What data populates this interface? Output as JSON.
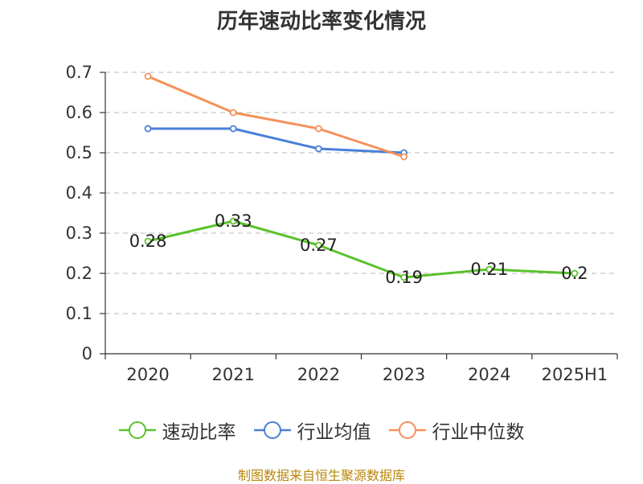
{
  "title": "历年速动比率变化情况",
  "source_text": "制图数据来自恒生聚源数据库",
  "chart_data": {
    "type": "line",
    "title": "历年速动比率变化情况",
    "categories": [
      "2020",
      "2021",
      "2022",
      "2023",
      "2024",
      "2025H1"
    ],
    "ylim": [
      0,
      0.7
    ],
    "yticks": [
      "0",
      "0.1",
      "0.2",
      "0.3",
      "0.4",
      "0.5",
      "0.6",
      "0.7"
    ],
    "grid": true,
    "legend_position": "bottom",
    "series": [
      {
        "name": "速动比率",
        "color": "#5ac12c",
        "values": [
          0.28,
          0.33,
          0.27,
          0.19,
          0.21,
          0.2
        ],
        "labels": [
          "0.28",
          "0.33",
          "0.27",
          "0.19",
          "0.21",
          "0.2"
        ]
      },
      {
        "name": "行业均值",
        "color": "#4a7fd9",
        "values": [
          0.56,
          0.56,
          0.51,
          0.5,
          null,
          null
        ]
      },
      {
        "name": "行业中位数",
        "color": "#f5915a",
        "values": [
          0.69,
          0.6,
          0.56,
          0.49,
          null,
          null
        ]
      }
    ]
  }
}
